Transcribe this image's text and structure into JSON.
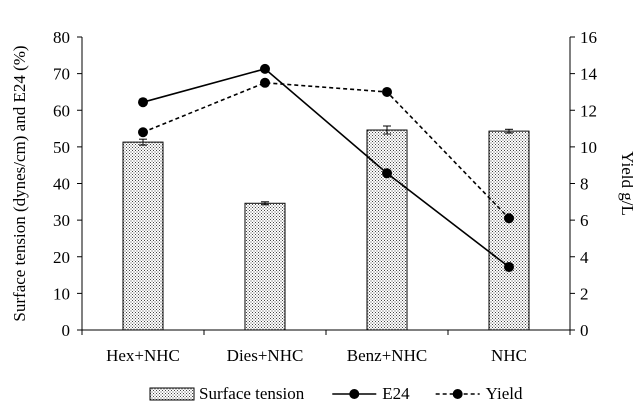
{
  "chart_data": {
    "type": "bar+line",
    "categories": [
      "Hex+NHC",
      "Dies+NHC",
      "Benz+NHC",
      "NHC"
    ],
    "left_axis": {
      "label": "Surface tension (dynes/cm) and E24 (%)",
      "ylim": [
        0,
        80
      ],
      "ticks": [
        0,
        10,
        20,
        30,
        40,
        50,
        60,
        70,
        80
      ]
    },
    "right_axis": {
      "label": "Yield g/L",
      "ylim": [
        0,
        16
      ],
      "ticks": [
        0,
        2,
        4,
        6,
        8,
        10,
        12,
        14,
        16
      ]
    },
    "series": [
      {
        "name": "Surface tension",
        "kind": "bar",
        "axis": "left",
        "values": [
          51.3,
          34.6,
          54.6,
          54.3
        ],
        "errors": [
          0.8,
          0.4,
          1.1,
          0.5
        ],
        "fill": "dotted"
      },
      {
        "name": "E24",
        "kind": "line",
        "axis": "left",
        "values": [
          62.2,
          71.3,
          42.8,
          17.2
        ],
        "style": "solid",
        "color": "#000000"
      },
      {
        "name": "Yield",
        "kind": "line",
        "axis": "right",
        "values": [
          10.8,
          13.5,
          13.0,
          6.1
        ],
        "style": "dashed",
        "color": "#000000"
      }
    ],
    "legend_position": "bottom",
    "grid": false
  }
}
